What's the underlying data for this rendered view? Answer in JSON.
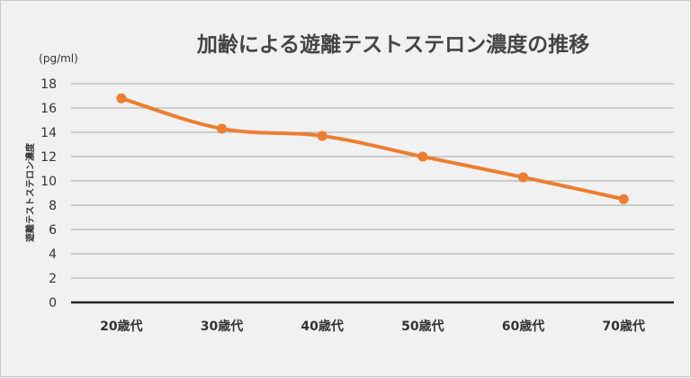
{
  "chart_data": {
    "type": "line",
    "title": "加齢による遊離テストステロン濃度の推移",
    "unit_label": "(pg/ml)",
    "ylabel": "遊離テストステロン濃度",
    "xlabel": "",
    "categories": [
      "20歳代",
      "30歳代",
      "40歳代",
      "50歳代",
      "60歳代",
      "70歳代"
    ],
    "series": [
      {
        "values": [
          16.8,
          14.3,
          13.7,
          12.0,
          10.3,
          8.5
        ]
      }
    ],
    "yticks": [
      "0",
      "2",
      "4",
      "6",
      "8",
      "10",
      "12",
      "14",
      "16",
      "18"
    ],
    "ylim": [
      0,
      18
    ],
    "grid": true,
    "line_color": "#ed7d31",
    "grid_color": "#a6a6a6",
    "axis_color": "#222222"
  }
}
